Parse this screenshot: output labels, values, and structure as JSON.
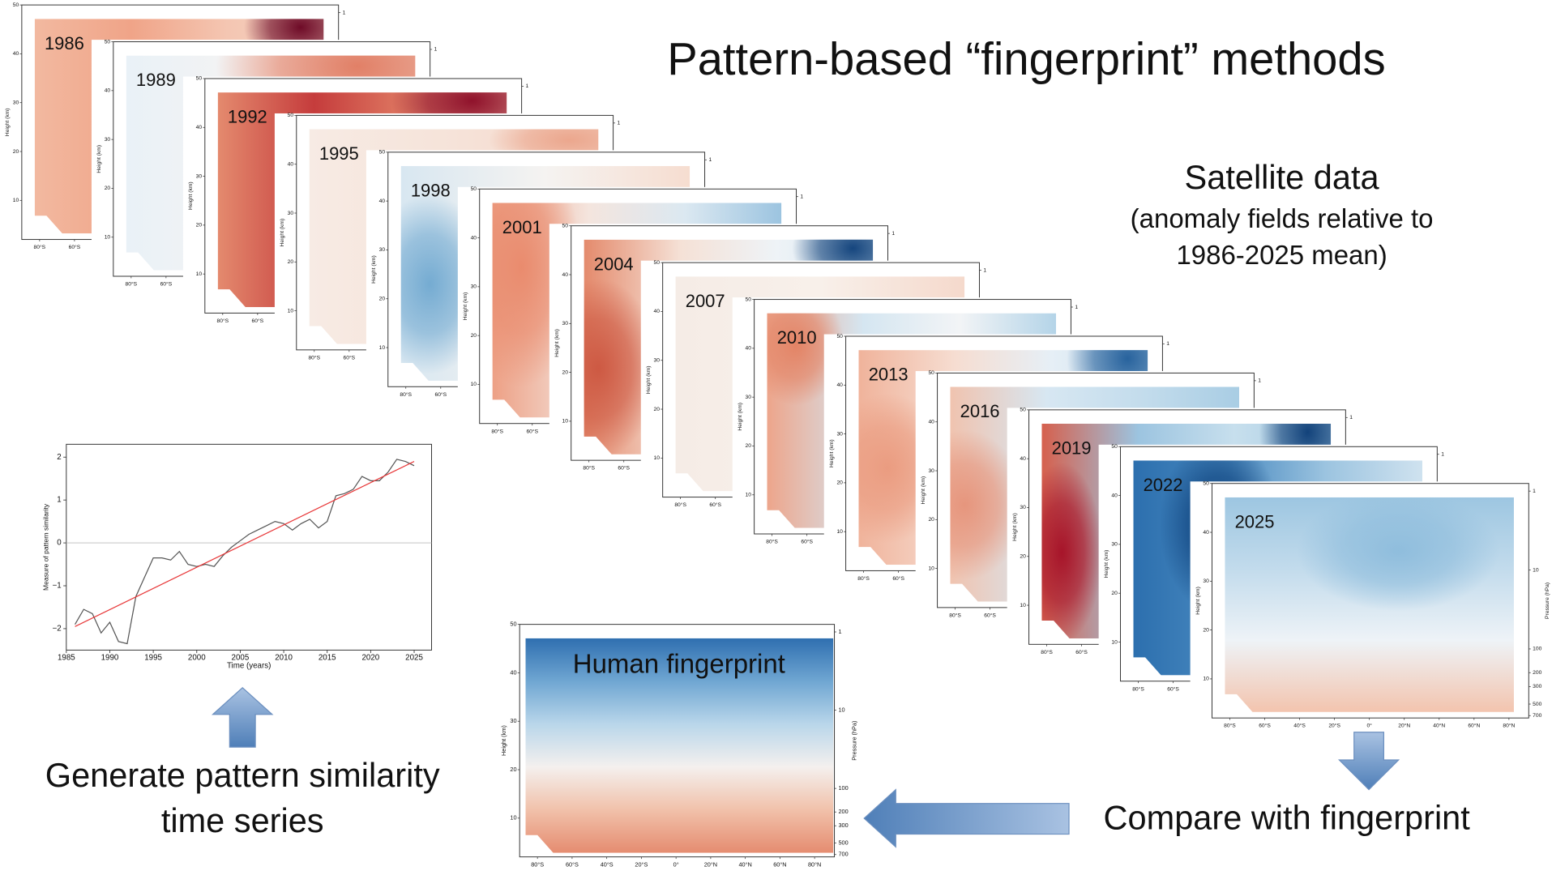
{
  "title": "Pattern-based “fingerprint” methods",
  "subtitle": {
    "line1": "Satellite data",
    "line2": "(anomaly fields relative to",
    "line3": "1986-2025 mean)"
  },
  "panels": [
    "1986",
    "1989",
    "1992",
    "1995",
    "1998",
    "2001",
    "2004",
    "2007",
    "2010",
    "2013",
    "2016",
    "2019",
    "2022",
    "2025"
  ],
  "fingerprint": {
    "title": "Human fingerprint",
    "xticks": [
      "80°S",
      "60°S",
      "40°S",
      "20°S",
      "0°",
      "20°N",
      "40°N",
      "60°N",
      "80°N"
    ],
    "ylabel": "Height (km)",
    "ylim": [
      2,
      50
    ],
    "yticks": [
      10,
      20,
      30,
      40,
      50
    ],
    "y2label": "Pressure (hPa)",
    "y2lim": [
      750,
      0.8
    ],
    "y2log": true,
    "y2ticks": [
      1,
      10,
      100,
      200,
      300,
      500,
      700
    ]
  },
  "chart_data": {
    "type": "line",
    "xlabel": "Time (years)",
    "ylabel": "Measure of pattern similarity",
    "x": [
      1986,
      1987,
      1988,
      1989,
      1990,
      1991,
      1992,
      1993,
      1994,
      1995,
      1996,
      1997,
      1998,
      1999,
      2000,
      2001,
      2002,
      2003,
      2004,
      2005,
      2006,
      2007,
      2008,
      2009,
      2010,
      2011,
      2012,
      2013,
      2014,
      2015,
      2016,
      2017,
      2018,
      2019,
      2020,
      2021,
      2022,
      2023,
      2024,
      2025
    ],
    "series": [
      {
        "color": "#555555",
        "values": [
          -1.9,
          -1.55,
          -1.65,
          -2.1,
          -1.85,
          -2.3,
          -2.35,
          -1.25,
          -0.8,
          -0.35,
          -0.35,
          -0.4,
          -0.2,
          -0.5,
          -0.55,
          -0.5,
          -0.55,
          -0.3,
          -0.1,
          0.05,
          0.2,
          0.3,
          0.4,
          0.5,
          0.45,
          0.3,
          0.45,
          0.55,
          0.35,
          0.5,
          1.1,
          1.15,
          1.25,
          1.55,
          1.45,
          1.45,
          1.65,
          1.95,
          1.9,
          1.8
        ]
      }
    ],
    "trend": {
      "color": "#e8393a",
      "x": [
        1986,
        2025
      ],
      "values": [
        -1.95,
        1.9
      ]
    },
    "hline": 0,
    "xlim": [
      1985,
      2027
    ],
    "ylim": [
      -2.5,
      2.3
    ],
    "xticks": [
      1985,
      1990,
      1995,
      2000,
      2005,
      2010,
      2015,
      2020,
      2025
    ],
    "yticks": [
      {
        "value": -2,
        "label": "−2"
      },
      {
        "value": -1,
        "label": "−1"
      },
      0,
      1,
      2
    ]
  },
  "captions": {
    "generate1": "Generate pattern similarity",
    "generate2": "time series",
    "compare": "Compare with fingerprint"
  }
}
